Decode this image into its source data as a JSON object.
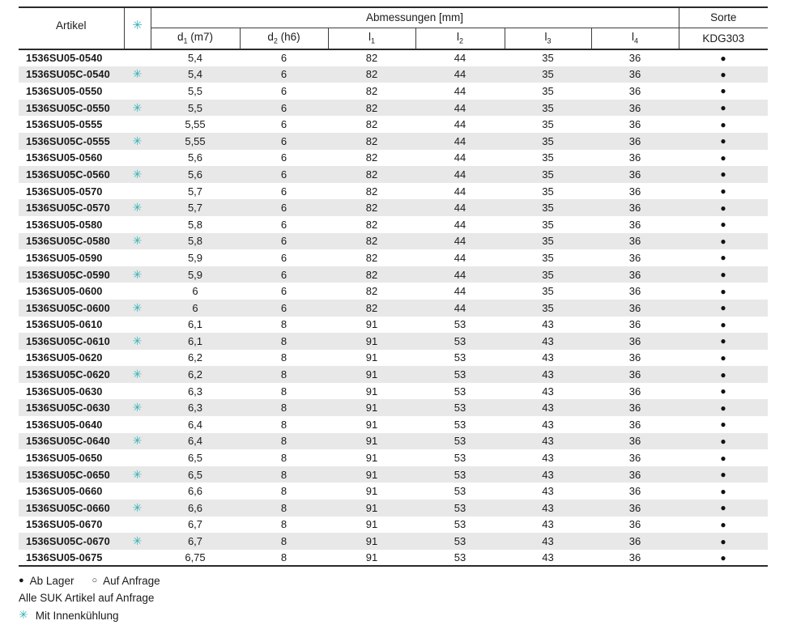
{
  "colors": {
    "accent_teal": "#2fb2b4",
    "row_alt_background": "#e8e8e8",
    "text": "#1a1a1a"
  },
  "table": {
    "header": {
      "artikel": "Artikel",
      "cooling_symbol": "✳",
      "abmessungen": "Abmessungen [mm]",
      "sorte": "Sorte",
      "grade": "KDG303",
      "dims": [
        {
          "base": "d",
          "sub": "1",
          "suffix": " (m7)"
        },
        {
          "base": "d",
          "sub": "2",
          "suffix": " (h6)"
        },
        {
          "base": "l",
          "sub": "1",
          "suffix": ""
        },
        {
          "base": "l",
          "sub": "2",
          "suffix": ""
        },
        {
          "base": "l",
          "sub": "3",
          "suffix": ""
        },
        {
          "base": "l",
          "sub": "4",
          "suffix": ""
        }
      ]
    },
    "rows": [
      {
        "artikel": "1536SU05-0540",
        "cooling": false,
        "values": [
          "5,4",
          "6",
          "82",
          "44",
          "35",
          "36"
        ],
        "stock": "●"
      },
      {
        "artikel": "1536SU05C-0540",
        "cooling": true,
        "values": [
          "5,4",
          "6",
          "82",
          "44",
          "35",
          "36"
        ],
        "stock": "●"
      },
      {
        "artikel": "1536SU05-0550",
        "cooling": false,
        "values": [
          "5,5",
          "6",
          "82",
          "44",
          "35",
          "36"
        ],
        "stock": "●"
      },
      {
        "artikel": "1536SU05C-0550",
        "cooling": true,
        "values": [
          "5,5",
          "6",
          "82",
          "44",
          "35",
          "36"
        ],
        "stock": "●"
      },
      {
        "artikel": "1536SU05-0555",
        "cooling": false,
        "values": [
          "5,55",
          "6",
          "82",
          "44",
          "35",
          "36"
        ],
        "stock": "●"
      },
      {
        "artikel": "1536SU05C-0555",
        "cooling": true,
        "values": [
          "5,55",
          "6",
          "82",
          "44",
          "35",
          "36"
        ],
        "stock": "●"
      },
      {
        "artikel": "1536SU05-0560",
        "cooling": false,
        "values": [
          "5,6",
          "6",
          "82",
          "44",
          "35",
          "36"
        ],
        "stock": "●"
      },
      {
        "artikel": "1536SU05C-0560",
        "cooling": true,
        "values": [
          "5,6",
          "6",
          "82",
          "44",
          "35",
          "36"
        ],
        "stock": "●"
      },
      {
        "artikel": "1536SU05-0570",
        "cooling": false,
        "values": [
          "5,7",
          "6",
          "82",
          "44",
          "35",
          "36"
        ],
        "stock": "●"
      },
      {
        "artikel": "1536SU05C-0570",
        "cooling": true,
        "values": [
          "5,7",
          "6",
          "82",
          "44",
          "35",
          "36"
        ],
        "stock": "●"
      },
      {
        "artikel": "1536SU05-0580",
        "cooling": false,
        "values": [
          "5,8",
          "6",
          "82",
          "44",
          "35",
          "36"
        ],
        "stock": "●"
      },
      {
        "artikel": "1536SU05C-0580",
        "cooling": true,
        "values": [
          "5,8",
          "6",
          "82",
          "44",
          "35",
          "36"
        ],
        "stock": "●"
      },
      {
        "artikel": "1536SU05-0590",
        "cooling": false,
        "values": [
          "5,9",
          "6",
          "82",
          "44",
          "35",
          "36"
        ],
        "stock": "●"
      },
      {
        "artikel": "1536SU05C-0590",
        "cooling": true,
        "values": [
          "5,9",
          "6",
          "82",
          "44",
          "35",
          "36"
        ],
        "stock": "●"
      },
      {
        "artikel": "1536SU05-0600",
        "cooling": false,
        "values": [
          "6",
          "6",
          "82",
          "44",
          "35",
          "36"
        ],
        "stock": "●"
      },
      {
        "artikel": "1536SU05C-0600",
        "cooling": true,
        "values": [
          "6",
          "6",
          "82",
          "44",
          "35",
          "36"
        ],
        "stock": "●"
      },
      {
        "artikel": "1536SU05-0610",
        "cooling": false,
        "values": [
          "6,1",
          "8",
          "91",
          "53",
          "43",
          "36"
        ],
        "stock": "●"
      },
      {
        "artikel": "1536SU05C-0610",
        "cooling": true,
        "values": [
          "6,1",
          "8",
          "91",
          "53",
          "43",
          "36"
        ],
        "stock": "●"
      },
      {
        "artikel": "1536SU05-0620",
        "cooling": false,
        "values": [
          "6,2",
          "8",
          "91",
          "53",
          "43",
          "36"
        ],
        "stock": "●"
      },
      {
        "artikel": "1536SU05C-0620",
        "cooling": true,
        "values": [
          "6,2",
          "8",
          "91",
          "53",
          "43",
          "36"
        ],
        "stock": "●"
      },
      {
        "artikel": "1536SU05-0630",
        "cooling": false,
        "values": [
          "6,3",
          "8",
          "91",
          "53",
          "43",
          "36"
        ],
        "stock": "●"
      },
      {
        "artikel": "1536SU05C-0630",
        "cooling": true,
        "values": [
          "6,3",
          "8",
          "91",
          "53",
          "43",
          "36"
        ],
        "stock": "●"
      },
      {
        "artikel": "1536SU05-0640",
        "cooling": false,
        "values": [
          "6,4",
          "8",
          "91",
          "53",
          "43",
          "36"
        ],
        "stock": "●"
      },
      {
        "artikel": "1536SU05C-0640",
        "cooling": true,
        "values": [
          "6,4",
          "8",
          "91",
          "53",
          "43",
          "36"
        ],
        "stock": "●"
      },
      {
        "artikel": "1536SU05-0650",
        "cooling": false,
        "values": [
          "6,5",
          "8",
          "91",
          "53",
          "43",
          "36"
        ],
        "stock": "●"
      },
      {
        "artikel": "1536SU05C-0650",
        "cooling": true,
        "values": [
          "6,5",
          "8",
          "91",
          "53",
          "43",
          "36"
        ],
        "stock": "●"
      },
      {
        "artikel": "1536SU05-0660",
        "cooling": false,
        "values": [
          "6,6",
          "8",
          "91",
          "53",
          "43",
          "36"
        ],
        "stock": "●"
      },
      {
        "artikel": "1536SU05C-0660",
        "cooling": true,
        "values": [
          "6,6",
          "8",
          "91",
          "53",
          "43",
          "36"
        ],
        "stock": "●"
      },
      {
        "artikel": "1536SU05-0670",
        "cooling": false,
        "values": [
          "6,7",
          "8",
          "91",
          "53",
          "43",
          "36"
        ],
        "stock": "●"
      },
      {
        "artikel": "1536SU05C-0670",
        "cooling": true,
        "values": [
          "6,7",
          "8",
          "91",
          "53",
          "43",
          "36"
        ],
        "stock": "●"
      },
      {
        "artikel": "1536SU05-0675",
        "cooling": false,
        "values": [
          "6,75",
          "8",
          "91",
          "53",
          "43",
          "36"
        ],
        "stock": "●"
      }
    ]
  },
  "legend": {
    "in_stock_symbol": "●",
    "in_stock_label": "Ab Lager",
    "on_request_symbol": "○",
    "on_request_label": "Auf Anfrage",
    "note": "Alle SUK Artikel auf Anfrage",
    "cooling_symbol": "✳",
    "cooling_label": "Mit Innenkühlung"
  }
}
